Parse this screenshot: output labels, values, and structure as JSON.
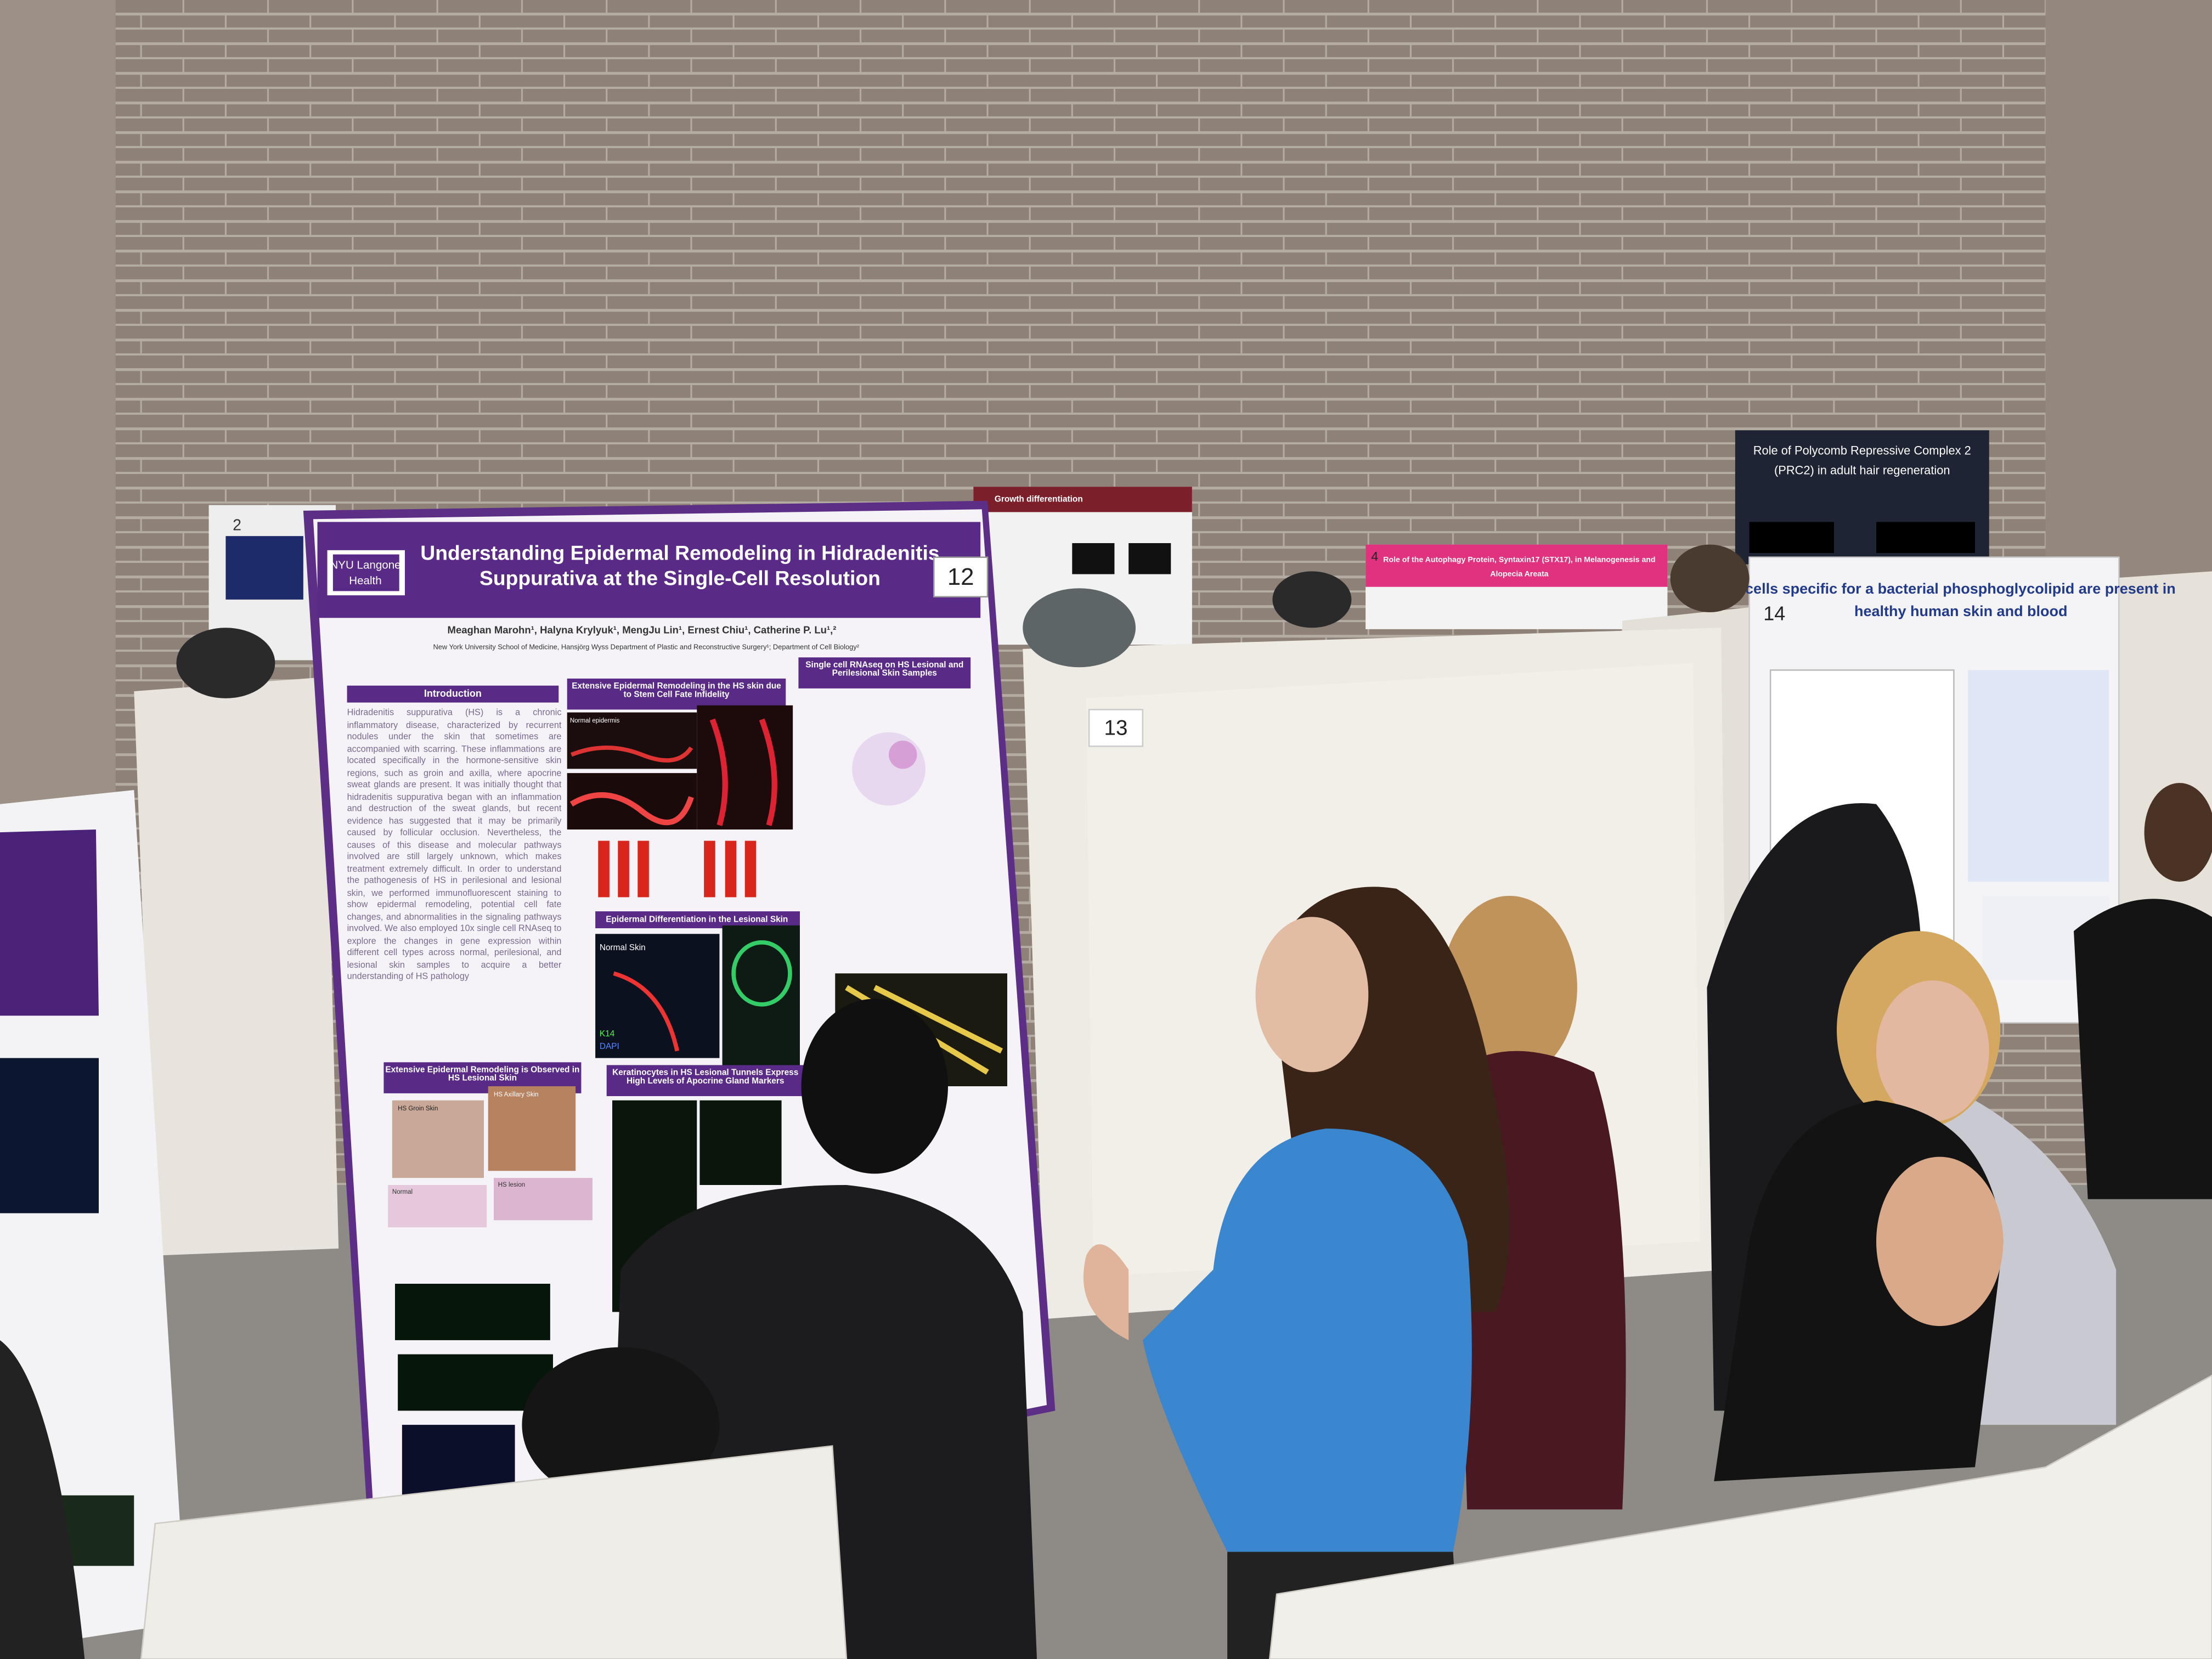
{
  "boards": {
    "left_back": "2",
    "main": "12",
    "center": "13",
    "right": "14",
    "back_pink": "4"
  },
  "main_poster": {
    "logo": [
      "NYU Langone",
      "Health"
    ],
    "title_lines": [
      "Understanding Epidermal Remodeling in Hidradenitis",
      "Suppurativa at the Single-Cell Resolution"
    ],
    "authors": "Meaghan Marohn¹, Halyna Krylyuk¹, MengJu Lin¹, Ernest Chiu¹, Catherine P. Lu¹,²",
    "affiliation": "New York University School of Medicine, Hansjörg Wyss Department of Plastic and Reconstructive Surgery¹; Department of Cell Biology²",
    "sections": [
      "Introduction",
      "Extensive Epidermal Remodeling in the HS skin due to Stem Cell Fate Infidelity",
      "Single cell RNAseq on HS Lesional and Perilesional Skin Samples",
      "Epidermal Differentiation in the Lesional Skin",
      "Extensive Epidermal Remodeling is Observed in HS Lesional Skin",
      "Keratinocytes in HS Lesional Tunnels Express High Levels of Apocrine Gland Markers"
    ],
    "intro_text": "Hidradenitis suppurativa (HS) is a chronic inflammatory disease, characterized by recurrent nodules under the skin that sometimes are accompanied with scarring. These inflammations are located specifically in the hormone-sensitive skin regions, such as groin and axilla, where apocrine sweat glands are present. It was initially thought that hidradenitis suppurativa began with an inflammation and destruction of the sweat glands, but recent evidence has suggested that it may be primarily caused by follicular occlusion. Nevertheless, the causes of this disease and molecular pathways involved are still largely unknown, which makes treatment extremely difficult. In order to understand the pathogenesis of HS in perilesional and lesional skin, we performed immunofluorescent staining to show epidermal remodeling, potential cell fate changes, and abnormalities in the signaling pathways involved. We also employed 10x single cell RNAseq to explore the changes in gene expression within different cell types across normal, perilesional, and lesional skin samples to acquire a better understanding of HS pathology",
    "image_labels": [
      "Normal epidermis",
      "Normal Skin",
      "K14",
      "DAPI",
      "HS Groin Skin",
      "HS Axillary Skin",
      "Normal",
      "HS lesion"
    ]
  },
  "other_posters": {
    "right_title": [
      "T cells specific for a bacterial phosphoglycolipid are present in",
      "healthy human skin and blood"
    ],
    "prc2_title": [
      "Role of Polycomb Repressive Complex 2",
      "(PRC2) in adult hair regeneration"
    ],
    "pink_title": [
      "Role of the Autophagy Protein, Syntaxin17 (STX17), in Melanogenesis and",
      "Alopecia Areata"
    ],
    "middle_title": "Growth differentiation"
  }
}
